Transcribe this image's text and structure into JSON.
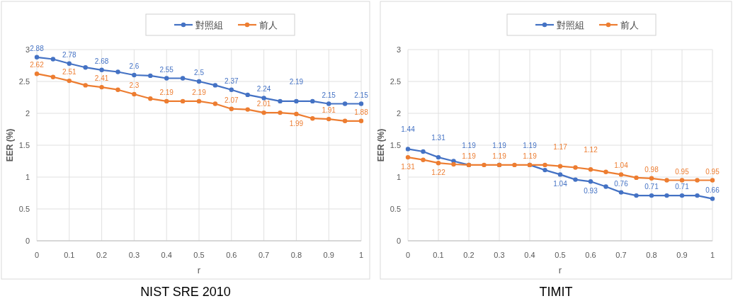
{
  "chart_data": [
    {
      "type": "line",
      "title": "NIST SRE 2010",
      "xlabel": "r",
      "ylabel": "EER (%)",
      "xlim": [
        0,
        1
      ],
      "ylim": [
        0,
        3
      ],
      "xticks": [
        0,
        0.1,
        0.2,
        0.3,
        0.4,
        0.5,
        0.6,
        0.7,
        0.8,
        0.9,
        1
      ],
      "yticks": [
        0,
        0.5,
        1,
        1.5,
        2,
        2.5,
        3
      ],
      "grid": true,
      "legend": "top",
      "marker": "circle",
      "line_style": "solid",
      "x": [
        0,
        0.05,
        0.1,
        0.15,
        0.2,
        0.25,
        0.3,
        0.35,
        0.4,
        0.45,
        0.5,
        0.55,
        0.6,
        0.65,
        0.7,
        0.75,
        0.8,
        0.85,
        0.9,
        0.95,
        1
      ],
      "series": [
        {
          "name": "對照組",
          "color": "#4472c4",
          "values": [
            2.88,
            2.85,
            2.78,
            2.72,
            2.68,
            2.65,
            2.6,
            2.59,
            2.55,
            2.55,
            2.5,
            2.44,
            2.37,
            2.29,
            2.24,
            2.19,
            2.19,
            2.19,
            2.15,
            2.15,
            2.15
          ],
          "value_labels": [
            "2.88",
            null,
            "2.78",
            null,
            "2.68",
            null,
            "2.6",
            null,
            "2.55",
            null,
            "2.5",
            null,
            "2.37",
            null,
            "2.24",
            null,
            "2.19",
            null,
            "2.15",
            null,
            "2.15"
          ]
        },
        {
          "name": "前人",
          "color": "#ed7d31",
          "values": [
            2.62,
            2.57,
            2.51,
            2.44,
            2.41,
            2.37,
            2.3,
            2.23,
            2.19,
            2.19,
            2.19,
            2.15,
            2.07,
            2.06,
            2.01,
            2.01,
            1.99,
            1.92,
            1.91,
            1.88,
            1.88
          ],
          "value_labels": [
            "2.62",
            null,
            "2.51",
            null,
            "2.41",
            null,
            "2.3",
            null,
            "2.19",
            null,
            "2.19",
            null,
            "2.07",
            null,
            "2.01",
            null,
            "1.99",
            null,
            "1.91",
            null,
            "1.88"
          ]
        }
      ]
    },
    {
      "type": "line",
      "title": "TIMIT",
      "xlabel": "r",
      "ylabel": "EER (%)",
      "xlim": [
        0,
        1
      ],
      "ylim": [
        0,
        3
      ],
      "xticks": [
        0,
        0.1,
        0.2,
        0.3,
        0.4,
        0.5,
        0.6,
        0.7,
        0.8,
        0.9,
        1
      ],
      "yticks": [
        0,
        0.5,
        1,
        1.5,
        2,
        2.5,
        3
      ],
      "grid": true,
      "legend": "top",
      "marker": "circle",
      "line_style": "solid",
      "x": [
        0,
        0.05,
        0.1,
        0.15,
        0.2,
        0.25,
        0.3,
        0.35,
        0.4,
        0.45,
        0.5,
        0.55,
        0.6,
        0.65,
        0.7,
        0.75,
        0.8,
        0.85,
        0.9,
        0.95,
        1
      ],
      "series": [
        {
          "name": "對照組",
          "color": "#4472c4",
          "values": [
            1.44,
            1.4,
            1.31,
            1.25,
            1.19,
            null,
            1.19,
            null,
            1.19,
            1.11,
            1.04,
            0.96,
            0.93,
            0.85,
            0.76,
            0.71,
            0.71,
            0.71,
            0.71,
            0.71,
            0.66
          ],
          "value_labels": [
            "1.44",
            null,
            "1.31",
            null,
            "1.19",
            null,
            "1.19",
            null,
            "1.19",
            null,
            "1.04",
            null,
            "0.93",
            null,
            "0.76",
            null,
            "0.71",
            null,
            "0.71",
            null,
            "0.66"
          ]
        },
        {
          "name": "前人",
          "color": "#ed7d31",
          "values": [
            1.31,
            1.27,
            1.22,
            1.2,
            1.19,
            1.19,
            1.19,
            1.19,
            1.19,
            1.19,
            1.17,
            1.15,
            1.12,
            1.08,
            1.04,
            0.99,
            0.98,
            0.95,
            0.95,
            0.95,
            0.95
          ],
          "value_labels": [
            "1.31",
            null,
            "1.22",
            null,
            "1.19",
            null,
            "1.19",
            null,
            "1.19",
            null,
            "1.17",
            null,
            "1.12",
            null,
            "1.04",
            null,
            "0.98",
            null,
            "0.95",
            null,
            "0.95"
          ]
        }
      ]
    }
  ]
}
